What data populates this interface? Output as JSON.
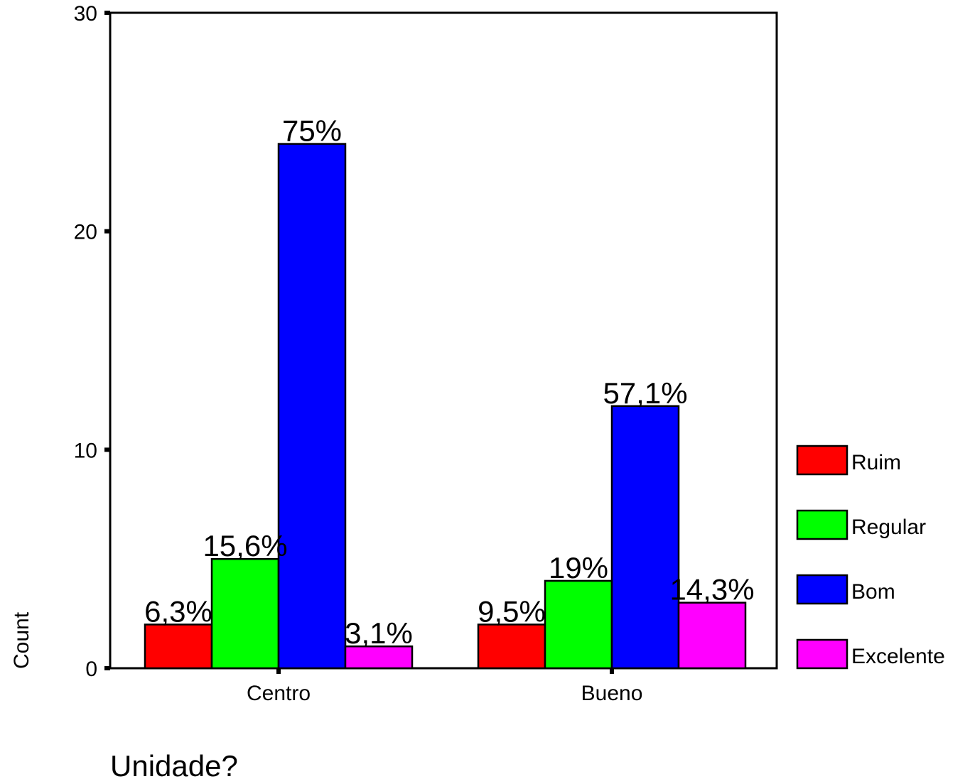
{
  "chart_data": {
    "type": "bar",
    "title": "",
    "xlabel": "Unidade?",
    "ylabel": "Count",
    "ylim": [
      0,
      30
    ],
    "yticks": [
      0,
      10,
      20,
      30
    ],
    "categories": [
      "Centro",
      "Bueno"
    ],
    "series": [
      {
        "name": "Ruim",
        "color": "#ff0000",
        "values": [
          2,
          2
        ],
        "labels": [
          "6,3%",
          "9,5%"
        ]
      },
      {
        "name": "Regular",
        "color": "#00ff00",
        "values": [
          5,
          4
        ],
        "labels": [
          "15,6%",
          "19%"
        ]
      },
      {
        "name": "Bom",
        "color": "#0000ff",
        "values": [
          24,
          12
        ],
        "labels": [
          "75%",
          "57,1%"
        ]
      },
      {
        "name": "Excelente",
        "color": "#ff00ff",
        "values": [
          1,
          3
        ],
        "labels": [
          "3,1%",
          "14,3%"
        ]
      }
    ],
    "grid": false,
    "legend_position": "right"
  }
}
